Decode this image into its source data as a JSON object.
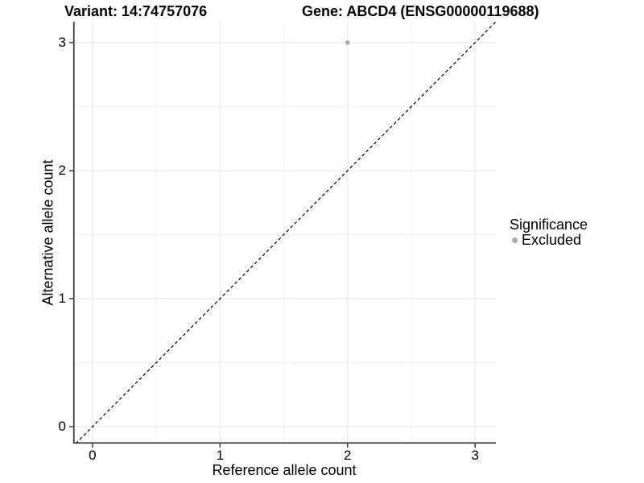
{
  "chart_data": {
    "type": "scatter",
    "titles": [
      "Variant: 14:74757076",
      "Gene: ABCD4 (ENSG00000119688)"
    ],
    "xlabel": "Reference allele count",
    "ylabel": "Alternative allele count",
    "xlim": [
      -0.151,
      3.163
    ],
    "ylim": [
      -0.132,
      3.163
    ],
    "x_ticks": [
      0,
      1,
      2,
      3
    ],
    "y_ticks": [
      0,
      1,
      2,
      3
    ],
    "x_minor_gridlines": [
      0.5,
      1.5,
      2.5
    ],
    "y_minor_gridlines": [
      0.5,
      1.5,
      2.5
    ],
    "grid": true,
    "series": [
      {
        "name": "Excluded",
        "color": "#aaaaaa",
        "points": [
          {
            "x": 2,
            "y": 3
          }
        ]
      }
    ],
    "reference_line": {
      "kind": "identity_y_equals_x",
      "style": "dashed",
      "color": "#000000"
    },
    "legend": {
      "title": "Significance",
      "position": "right",
      "items": [
        {
          "label": "Excluded",
          "color": "#aaaaaa"
        }
      ]
    }
  },
  "colors": {
    "background": "#ffffff",
    "axis_line": "#3f3f3f",
    "grid_major": "#e7e7e7",
    "grid_minor": "#f2f2f2",
    "text": "#000000"
  }
}
